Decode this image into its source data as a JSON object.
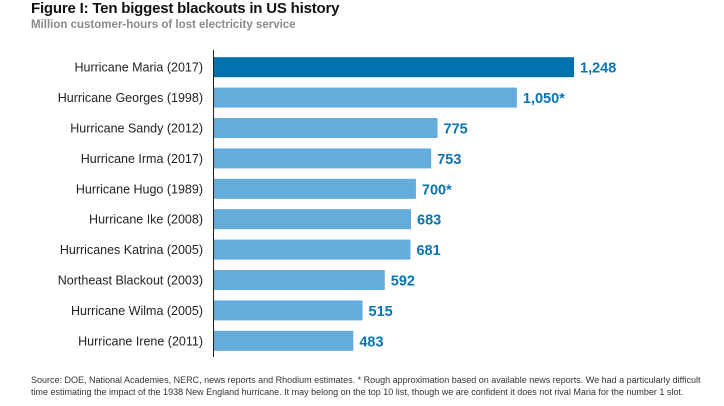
{
  "header": {
    "title": "Figure I: Ten biggest blackouts in US history",
    "subtitle": "Million customer-hours of lost electricity service"
  },
  "chart_data": {
    "type": "bar",
    "orientation": "horizontal",
    "title": "Figure I: Ten biggest blackouts in US history",
    "subtitle": "Million customer-hours of lost electricity service",
    "categories": [
      "Hurricane Maria (2017)",
      "Hurricane Georges (1998)",
      "Hurricane Sandy (2012)",
      "Hurricane Irma (2017)",
      "Hurricane Hugo (1989)",
      "Hurricane Ike (2008)",
      "Hurricanes Katrina (2005)",
      "Northeast Blackout (2003)",
      "Hurricane Wilma (2005)",
      "Hurricane Irene (2011)"
    ],
    "values": [
      1248,
      1050,
      775,
      753,
      700,
      683,
      681,
      592,
      515,
      483
    ],
    "value_labels": [
      "1,248",
      "1,050*",
      "775",
      "753",
      "700*",
      "683",
      "681",
      "592",
      "515",
      "483"
    ],
    "highlighted_index": 0,
    "xlim": [
      0,
      1248
    ],
    "grid": false,
    "legend": "none",
    "colors": {
      "highlight_bar": "#0072ad",
      "bar": "#64acdb",
      "label": "#0a74b0",
      "axis": "#222222"
    }
  },
  "footer": {
    "source_note": "Source: DOE, National Academies, NERC, news reports and Rhodium estimates. * Rough approximation based on available news reports. We had a particularly difficult time estimating the impact of the 1938 New England hurricane. It may belong on the top 10 list, though we are confident it does not rival Maria for the number 1 slot."
  }
}
